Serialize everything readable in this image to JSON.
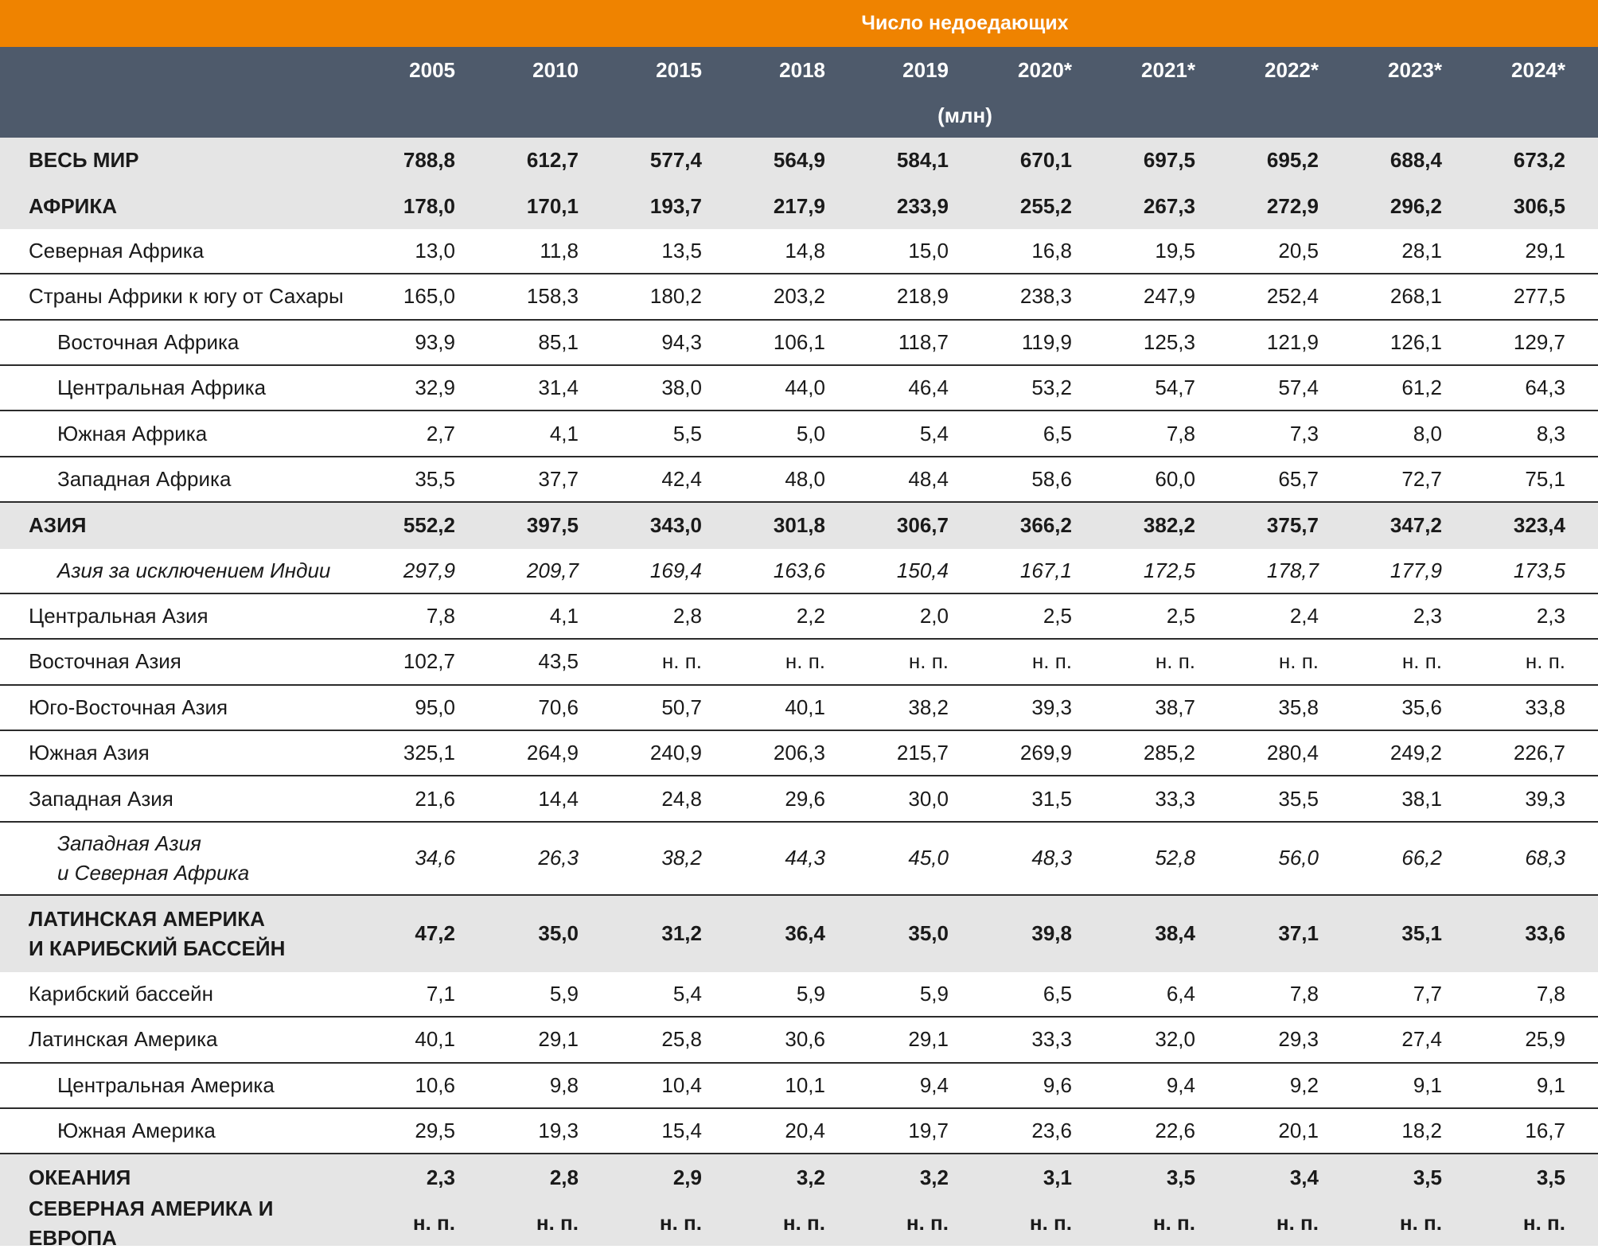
{
  "header": {
    "title": "Число недоедающих",
    "columns": [
      "2005",
      "2010",
      "2015",
      "2018",
      "2019",
      "2020*",
      "2021*",
      "2022*",
      "2023*",
      "2024*"
    ],
    "unit": "(млн)"
  },
  "rows": [
    {
      "label": "ВЕСЬ МИР",
      "values": [
        "788,8",
        "612,7",
        "577,4",
        "564,9",
        "584,1",
        "670,1",
        "697,5",
        "695,2",
        "688,4",
        "673,2"
      ]
    },
    {
      "label": "АФРИКА",
      "values": [
        "178,0",
        "170,1",
        "193,7",
        "217,9",
        "233,9",
        "255,2",
        "267,3",
        "272,9",
        "296,2",
        "306,5"
      ]
    },
    {
      "label": "Северная Африка",
      "values": [
        "13,0",
        "11,8",
        "13,5",
        "14,8",
        "15,0",
        "16,8",
        "19,5",
        "20,5",
        "28,1",
        "29,1"
      ]
    },
    {
      "label": "Страны Африки к югу от Сахары",
      "values": [
        "165,0",
        "158,3",
        "180,2",
        "203,2",
        "218,9",
        "238,3",
        "247,9",
        "252,4",
        "268,1",
        "277,5"
      ]
    },
    {
      "label": "Восточная Африка",
      "values": [
        "93,9",
        "85,1",
        "94,3",
        "106,1",
        "118,7",
        "119,9",
        "125,3",
        "121,9",
        "126,1",
        "129,7"
      ]
    },
    {
      "label": "Центральная Африка",
      "values": [
        "32,9",
        "31,4",
        "38,0",
        "44,0",
        "46,4",
        "53,2",
        "54,7",
        "57,4",
        "61,2",
        "64,3"
      ]
    },
    {
      "label": "Южная Африка",
      "values": [
        "2,7",
        "4,1",
        "5,5",
        "5,0",
        "5,4",
        "6,5",
        "7,8",
        "7,3",
        "8,0",
        "8,3"
      ]
    },
    {
      "label": "Западная Африка",
      "values": [
        "35,5",
        "37,7",
        "42,4",
        "48,0",
        "48,4",
        "58,6",
        "60,0",
        "65,7",
        "72,7",
        "75,1"
      ]
    },
    {
      "label": "АЗИЯ",
      "values": [
        "552,2",
        "397,5",
        "343,0",
        "301,8",
        "306,7",
        "366,2",
        "382,2",
        "375,7",
        "347,2",
        "323,4"
      ]
    },
    {
      "label": "Азия за исключением Индии",
      "values": [
        "297,9",
        "209,7",
        "169,4",
        "163,6",
        "150,4",
        "167,1",
        "172,5",
        "178,7",
        "177,9",
        "173,5"
      ]
    },
    {
      "label": "Центральная Азия",
      "values": [
        "7,8",
        "4,1",
        "2,8",
        "2,2",
        "2,0",
        "2,5",
        "2,5",
        "2,4",
        "2,3",
        "2,3"
      ]
    },
    {
      "label": "Восточная Азия",
      "values": [
        "102,7",
        "43,5",
        "н. п.",
        "н. п.",
        "н. п.",
        "н. п.",
        "н. п.",
        "н. п.",
        "н. п.",
        "н. п."
      ]
    },
    {
      "label": "Юго-Восточная Азия",
      "values": [
        "95,0",
        "70,6",
        "50,7",
        "40,1",
        "38,2",
        "39,3",
        "38,7",
        "35,8",
        "35,6",
        "33,8"
      ]
    },
    {
      "label": "Южная Азия",
      "values": [
        "325,1",
        "264,9",
        "240,9",
        "206,3",
        "215,7",
        "269,9",
        "285,2",
        "280,4",
        "249,2",
        "226,7"
      ]
    },
    {
      "label": "Западная Азия",
      "values": [
        "21,6",
        "14,4",
        "24,8",
        "29,6",
        "30,0",
        "31,5",
        "33,3",
        "35,5",
        "38,1",
        "39,3"
      ]
    },
    {
      "label": "Западная Азия\nи Северная Африка",
      "values": [
        "34,6",
        "26,3",
        "38,2",
        "44,3",
        "45,0",
        "48,3",
        "52,8",
        "56,0",
        "66,2",
        "68,3"
      ]
    },
    {
      "label": "ЛАТИНСКАЯ АМЕРИКА\nИ КАРИБСКИЙ БАССЕЙН",
      "values": [
        "47,2",
        "35,0",
        "31,2",
        "36,4",
        "35,0",
        "39,8",
        "38,4",
        "37,1",
        "35,1",
        "33,6"
      ]
    },
    {
      "label": "Карибский бассейн",
      "values": [
        "7,1",
        "5,9",
        "5,4",
        "5,9",
        "5,9",
        "6,5",
        "6,4",
        "7,8",
        "7,7",
        "7,8"
      ]
    },
    {
      "label": "Латинская Америка",
      "values": [
        "40,1",
        "29,1",
        "25,8",
        "30,6",
        "29,1",
        "33,3",
        "32,0",
        "29,3",
        "27,4",
        "25,9"
      ]
    },
    {
      "label": "Центральная Америка",
      "values": [
        "10,6",
        "9,8",
        "10,4",
        "10,1",
        "9,4",
        "9,6",
        "9,4",
        "9,2",
        "9,1",
        "9,1"
      ]
    },
    {
      "label": "Южная Америка",
      "values": [
        "29,5",
        "19,3",
        "15,4",
        "20,4",
        "19,7",
        "23,6",
        "22,6",
        "20,1",
        "18,2",
        "16,7"
      ]
    },
    {
      "label": "ОКЕАНИЯ",
      "values": [
        "2,3",
        "2,8",
        "2,9",
        "3,2",
        "3,2",
        "3,1",
        "3,5",
        "3,4",
        "3,5",
        "3,5"
      ]
    },
    {
      "label": "СЕВЕРНАЯ АМЕРИКА И ЕВРОПА",
      "values": [
        "н. п.",
        "н. п.",
        "н. п.",
        "н. п.",
        "н. п.",
        "н. п.",
        "н. п.",
        "н. п.",
        "н. п.",
        "н. п."
      ]
    }
  ]
}
